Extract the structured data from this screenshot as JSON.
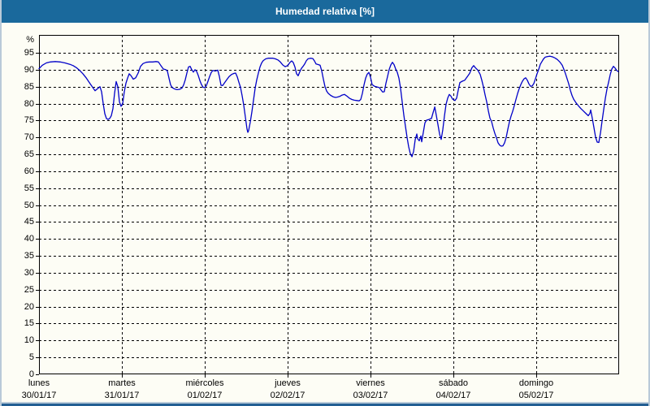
{
  "header": {
    "title": "Humedad relativa [%]"
  },
  "y_axis": {
    "unit_label": "%",
    "tick_values": [
      0,
      5,
      10,
      15,
      20,
      25,
      30,
      35,
      40,
      45,
      50,
      55,
      60,
      65,
      70,
      75,
      80,
      85,
      90,
      95
    ]
  },
  "x_axis": {
    "days": [
      {
        "name": "lunes",
        "date": "30/01/17"
      },
      {
        "name": "martes",
        "date": "31/01/17"
      },
      {
        "name": "miércoles",
        "date": "01/02/17"
      },
      {
        "name": "jueves",
        "date": "02/02/17"
      },
      {
        "name": "viernes",
        "date": "03/02/17"
      },
      {
        "name": "sábado",
        "date": "04/02/17"
      },
      {
        "name": "domingo",
        "date": "05/02/17"
      }
    ]
  },
  "chart_data": {
    "type": "line",
    "title": "Humedad relativa [%]",
    "ylabel": "%",
    "ylim": [
      0,
      100.3
    ],
    "y_tick_step": 5,
    "x_unit": "days since 30/01/17 00:00",
    "x_range_days": [
      0,
      7
    ],
    "grid": "dashed-black",
    "line_color": "#0000c8",
    "series": [
      {
        "name": "Humedad relativa",
        "points": [
          [
            0,
            90.3
          ],
          [
            0.039,
            91.3
          ],
          [
            0.088,
            92
          ],
          [
            0.137,
            92.3
          ],
          [
            0.196,
            92.4
          ],
          [
            0.255,
            92.3
          ],
          [
            0.314,
            92
          ],
          [
            0.373,
            91.6
          ],
          [
            0.412,
            91.2
          ],
          [
            0.451,
            90.6
          ],
          [
            0.49,
            89.8
          ],
          [
            0.529,
            88.8
          ],
          [
            0.569,
            87.6
          ],
          [
            0.608,
            86.2
          ],
          [
            0.647,
            84.8
          ],
          [
            0.676,
            83.8
          ],
          [
            0.706,
            84.4
          ],
          [
            0.735,
            85
          ],
          [
            0.755,
            83.5
          ],
          [
            0.775,
            80
          ],
          [
            0.794,
            77
          ],
          [
            0.814,
            75.6
          ],
          [
            0.833,
            75.3
          ],
          [
            0.853,
            75.6
          ],
          [
            0.873,
            76.4
          ],
          [
            0.892,
            78.5
          ],
          [
            0.912,
            83
          ],
          [
            0.931,
            86.5
          ],
          [
            0.951,
            85
          ],
          [
            0.971,
            80.5
          ],
          [
            0.99,
            79.2
          ],
          [
            1.01,
            80
          ],
          [
            1.029,
            83.5
          ],
          [
            1.049,
            86
          ],
          [
            1.069,
            87.5
          ],
          [
            1.088,
            88.8
          ],
          [
            1.108,
            88.3
          ],
          [
            1.137,
            87.2
          ],
          [
            1.167,
            87.6
          ],
          [
            1.196,
            89
          ],
          [
            1.225,
            91
          ],
          [
            1.255,
            91.8
          ],
          [
            1.294,
            92.2
          ],
          [
            1.333,
            92.3
          ],
          [
            1.373,
            92.3
          ],
          [
            1.412,
            92.4
          ],
          [
            1.441,
            92.3
          ],
          [
            1.471,
            91.2
          ],
          [
            1.5,
            90.2
          ],
          [
            1.529,
            90
          ],
          [
            1.549,
            89.6
          ],
          [
            1.569,
            87.5
          ],
          [
            1.588,
            85.5
          ],
          [
            1.608,
            84.7
          ],
          [
            1.637,
            84.3
          ],
          [
            1.667,
            84.1
          ],
          [
            1.696,
            84.2
          ],
          [
            1.725,
            84.6
          ],
          [
            1.745,
            85.5
          ],
          [
            1.765,
            87
          ],
          [
            1.784,
            89
          ],
          [
            1.804,
            90.8
          ],
          [
            1.824,
            91
          ],
          [
            1.843,
            90
          ],
          [
            1.863,
            89.3
          ],
          [
            1.882,
            90
          ],
          [
            1.902,
            89.5
          ],
          [
            1.922,
            88.3
          ],
          [
            1.941,
            86.8
          ],
          [
            1.961,
            85.6
          ],
          [
            1.98,
            84.8
          ],
          [
            2,
            84.7
          ],
          [
            2.02,
            85.3
          ],
          [
            2.039,
            86.6
          ],
          [
            2.059,
            88
          ],
          [
            2.078,
            89.2
          ],
          [
            2.098,
            89.8
          ],
          [
            2.127,
            89.6
          ],
          [
            2.157,
            89.9
          ],
          [
            2.176,
            88
          ],
          [
            2.196,
            85.4
          ],
          [
            2.216,
            85.3
          ],
          [
            2.235,
            86
          ],
          [
            2.265,
            87
          ],
          [
            2.294,
            88
          ],
          [
            2.324,
            88.6
          ],
          [
            2.353,
            88.9
          ],
          [
            2.373,
            89
          ],
          [
            2.392,
            87.9
          ],
          [
            2.412,
            86.3
          ],
          [
            2.431,
            84.8
          ],
          [
            2.451,
            82.3
          ],
          [
            2.471,
            79.5
          ],
          [
            2.49,
            76
          ],
          [
            2.51,
            72.5
          ],
          [
            2.52,
            71.5
          ],
          [
            2.529,
            72
          ],
          [
            2.549,
            74.5
          ],
          [
            2.569,
            77.5
          ],
          [
            2.588,
            81
          ],
          [
            2.608,
            84.5
          ],
          [
            2.627,
            87
          ],
          [
            2.647,
            89
          ],
          [
            2.667,
            90.8
          ],
          [
            2.686,
            92
          ],
          [
            2.706,
            92.7
          ],
          [
            2.735,
            93.2
          ],
          [
            2.765,
            93.4
          ],
          [
            2.794,
            93.4
          ],
          [
            2.824,
            93.4
          ],
          [
            2.853,
            93.2
          ],
          [
            2.882,
            92.9
          ],
          [
            2.912,
            92.3
          ],
          [
            2.941,
            91.4
          ],
          [
            2.971,
            90.9
          ],
          [
            3,
            91.2
          ],
          [
            3.029,
            92.2
          ],
          [
            3.049,
            92.6
          ],
          [
            3.069,
            92.1
          ],
          [
            3.088,
            90.8
          ],
          [
            3.108,
            88.8
          ],
          [
            3.127,
            88.2
          ],
          [
            3.147,
            89.4
          ],
          [
            3.167,
            90.4
          ],
          [
            3.186,
            91
          ],
          [
            3.206,
            91.7
          ],
          [
            3.225,
            92.6
          ],
          [
            3.245,
            93.2
          ],
          [
            3.275,
            93.4
          ],
          [
            3.304,
            93.3
          ],
          [
            3.324,
            92.6
          ],
          [
            3.343,
            91.7
          ],
          [
            3.373,
            91.5
          ],
          [
            3.392,
            91.3
          ],
          [
            3.412,
            89.6
          ],
          [
            3.431,
            87.2
          ],
          [
            3.451,
            85
          ],
          [
            3.471,
            83.7
          ],
          [
            3.49,
            83
          ],
          [
            3.52,
            82.4
          ],
          [
            3.549,
            82
          ],
          [
            3.578,
            81.8
          ],
          [
            3.598,
            81.9
          ],
          [
            3.627,
            82.1
          ],
          [
            3.657,
            82.5
          ],
          [
            3.686,
            82.7
          ],
          [
            3.716,
            82.2
          ],
          [
            3.745,
            81.6
          ],
          [
            3.775,
            81.2
          ],
          [
            3.804,
            81
          ],
          [
            3.833,
            80.9
          ],
          [
            3.863,
            80.8
          ],
          [
            3.882,
            81.2
          ],
          [
            3.902,
            83
          ],
          [
            3.922,
            85.5
          ],
          [
            3.941,
            87.5
          ],
          [
            3.961,
            88.7
          ],
          [
            3.98,
            89.2
          ],
          [
            4,
            87.8
          ],
          [
            4.02,
            85.6
          ],
          [
            4.049,
            85.1
          ],
          [
            4.078,
            84.9
          ],
          [
            4.108,
            84.7
          ],
          [
            4.127,
            84
          ],
          [
            4.147,
            83.4
          ],
          [
            4.167,
            83.5
          ],
          [
            4.186,
            86
          ],
          [
            4.206,
            88
          ],
          [
            4.225,
            90
          ],
          [
            4.245,
            91.4
          ],
          [
            4.265,
            92.2
          ],
          [
            4.284,
            91.5
          ],
          [
            4.304,
            90.2
          ],
          [
            4.324,
            89.2
          ],
          [
            4.343,
            87.5
          ],
          [
            4.363,
            84.5
          ],
          [
            4.382,
            80.5
          ],
          [
            4.402,
            76.6
          ],
          [
            4.422,
            73.3
          ],
          [
            4.441,
            70
          ],
          [
            4.461,
            67.2
          ],
          [
            4.48,
            65.2
          ],
          [
            4.5,
            64.3
          ],
          [
            4.52,
            65.8
          ],
          [
            4.539,
            69.3
          ],
          [
            4.559,
            71
          ],
          [
            4.569,
            69.6
          ],
          [
            4.588,
            69
          ],
          [
            4.608,
            70.4
          ],
          [
            4.618,
            68.7
          ],
          [
            4.637,
            71.5
          ],
          [
            4.657,
            74.3
          ],
          [
            4.676,
            75.1
          ],
          [
            4.706,
            75.3
          ],
          [
            4.735,
            75.6
          ],
          [
            4.755,
            77.3
          ],
          [
            4.775,
            79
          ],
          [
            4.794,
            76.5
          ],
          [
            4.814,
            73.8
          ],
          [
            4.833,
            71
          ],
          [
            4.853,
            69.4
          ],
          [
            4.873,
            72.3
          ],
          [
            4.892,
            76.3
          ],
          [
            4.912,
            79.8
          ],
          [
            4.931,
            81.6
          ],
          [
            4.951,
            82.7
          ],
          [
            4.971,
            82.2
          ],
          [
            4.99,
            81.3
          ],
          [
            5.02,
            80.9
          ],
          [
            5.039,
            81.6
          ],
          [
            5.059,
            84
          ],
          [
            5.078,
            86.2
          ],
          [
            5.108,
            86.6
          ],
          [
            5.137,
            86.9
          ],
          [
            5.167,
            87.9
          ],
          [
            5.196,
            88.9
          ],
          [
            5.225,
            90.6
          ],
          [
            5.245,
            91.2
          ],
          [
            5.265,
            90.6
          ],
          [
            5.294,
            89.9
          ],
          [
            5.324,
            88.6
          ],
          [
            5.343,
            86.9
          ],
          [
            5.363,
            84.9
          ],
          [
            5.382,
            82.6
          ],
          [
            5.402,
            80.5
          ],
          [
            5.422,
            77.9
          ],
          [
            5.441,
            75.7
          ],
          [
            5.461,
            74.7
          ],
          [
            5.48,
            72.8
          ],
          [
            5.5,
            71.2
          ],
          [
            5.52,
            69.9
          ],
          [
            5.539,
            68.4
          ],
          [
            5.559,
            67.7
          ],
          [
            5.578,
            67.4
          ],
          [
            5.598,
            67.5
          ],
          [
            5.618,
            68.4
          ],
          [
            5.637,
            70
          ],
          [
            5.657,
            72.4
          ],
          [
            5.676,
            74.6
          ],
          [
            5.696,
            76.3
          ],
          [
            5.716,
            77.7
          ],
          [
            5.735,
            79.4
          ],
          [
            5.755,
            81.2
          ],
          [
            5.775,
            83
          ],
          [
            5.794,
            84.4
          ],
          [
            5.814,
            85.6
          ],
          [
            5.833,
            86.6
          ],
          [
            5.853,
            87.3
          ],
          [
            5.873,
            87.6
          ],
          [
            5.892,
            86.9
          ],
          [
            5.912,
            85.8
          ],
          [
            5.931,
            85.1
          ],
          [
            5.951,
            85.2
          ],
          [
            5.971,
            85.9
          ],
          [
            5.99,
            87.3
          ],
          [
            6.01,
            88.8
          ],
          [
            6.029,
            90.1
          ],
          [
            6.049,
            91.6
          ],
          [
            6.069,
            92.4
          ],
          [
            6.088,
            93.2
          ],
          [
            6.108,
            93.7
          ],
          [
            6.137,
            93.9
          ],
          [
            6.167,
            94
          ],
          [
            6.196,
            93.8
          ],
          [
            6.225,
            93.5
          ],
          [
            6.255,
            93
          ],
          [
            6.284,
            92.3
          ],
          [
            6.314,
            91.3
          ],
          [
            6.333,
            90.1
          ],
          [
            6.353,
            88.8
          ],
          [
            6.373,
            87.3
          ],
          [
            6.392,
            85.8
          ],
          [
            6.412,
            83.9
          ],
          [
            6.431,
            82.4
          ],
          [
            6.451,
            81.3
          ],
          [
            6.48,
            80.2
          ],
          [
            6.51,
            79.3
          ],
          [
            6.539,
            78.5
          ],
          [
            6.569,
            77.8
          ],
          [
            6.598,
            77.1
          ],
          [
            6.627,
            76.4
          ],
          [
            6.647,
            77.1
          ],
          [
            6.657,
            78.1
          ],
          [
            6.676,
            75.6
          ],
          [
            6.696,
            72.9
          ],
          [
            6.716,
            70.1
          ],
          [
            6.735,
            68.6
          ],
          [
            6.755,
            68.5
          ],
          [
            6.775,
            71.4
          ],
          [
            6.794,
            74.8
          ],
          [
            6.814,
            78.2
          ],
          [
            6.833,
            81.5
          ],
          [
            6.853,
            84.2
          ],
          [
            6.873,
            86.3
          ],
          [
            6.892,
            88.5
          ],
          [
            6.912,
            90.2
          ],
          [
            6.931,
            91
          ],
          [
            6.951,
            90.5
          ],
          [
            6.971,
            89.8
          ],
          [
            6.99,
            89.4
          ]
        ]
      }
    ]
  }
}
